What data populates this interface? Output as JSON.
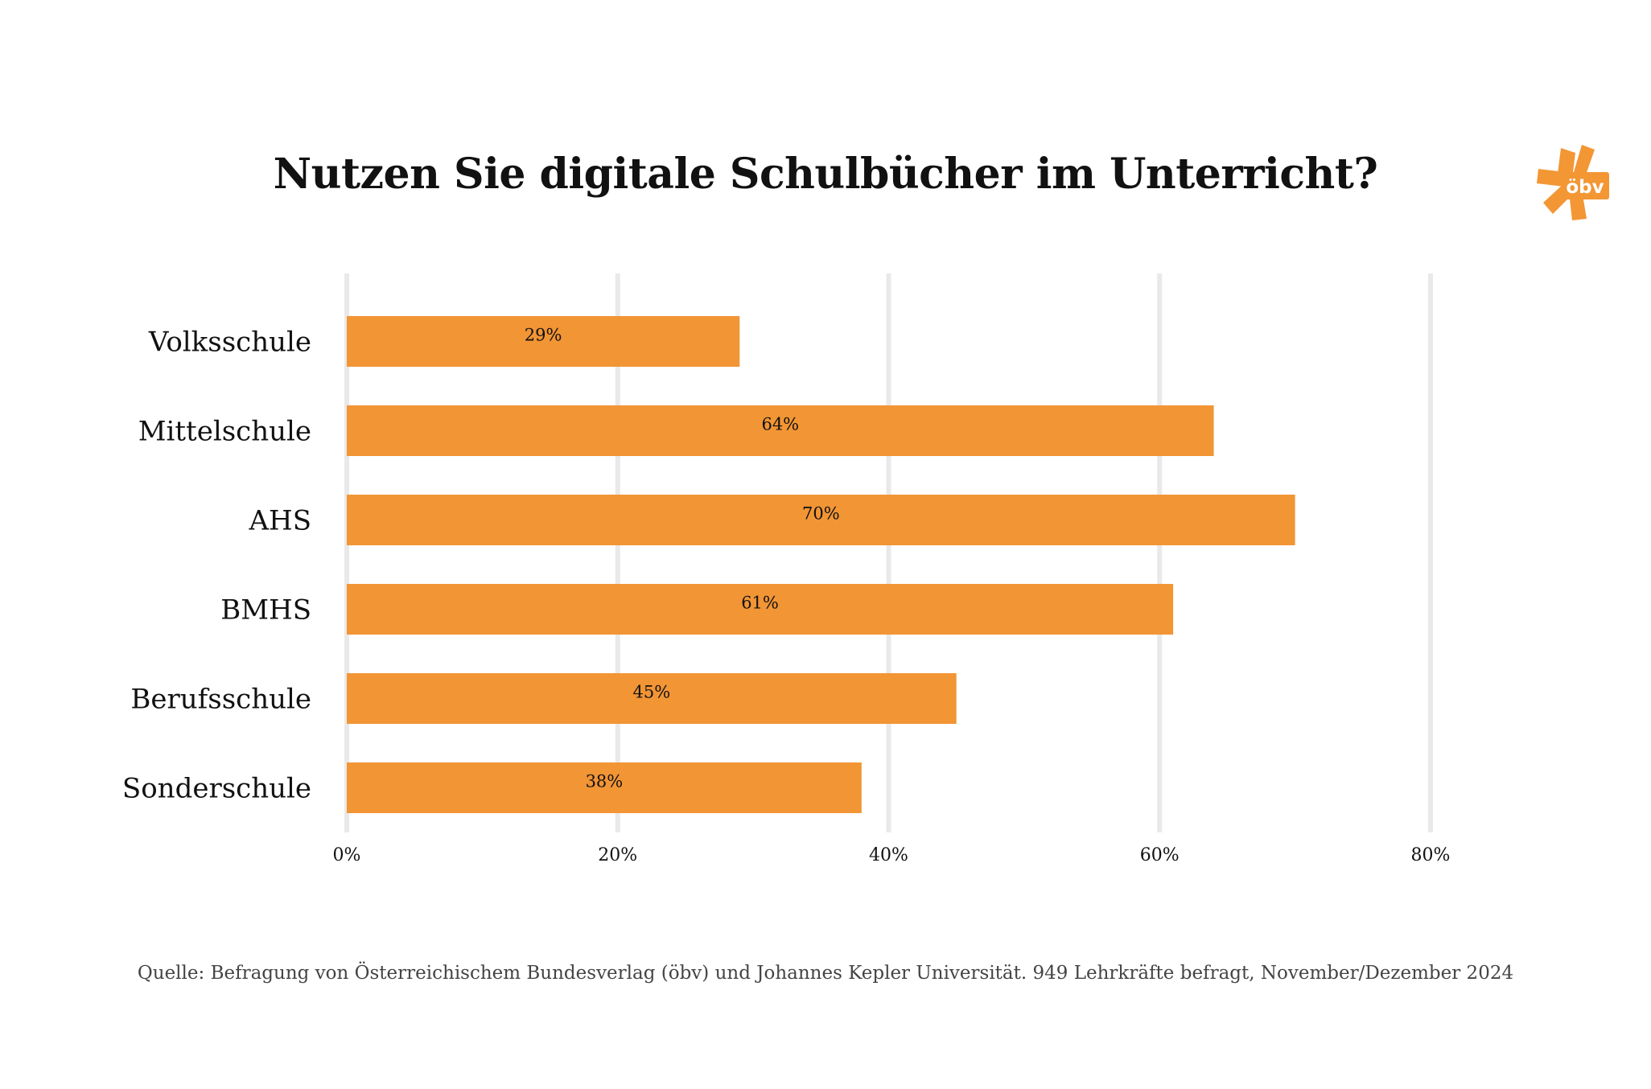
{
  "title": "Nutzen Sie digitale Schulbücher im Unterricht?",
  "logo": {
    "text": "öbv",
    "color": "#f39634",
    "icon": "oebv-asterisk-logo"
  },
  "source": "Quelle: Befragung von Österreichischem Bundesverlag (öbv) und Johannes Kepler Universität. 949 Lehrkräfte befragt, November/Dezember 2024",
  "colors": {
    "bar": "#f29535",
    "grid": "#e9e9e9",
    "text": "#111111"
  },
  "chart_data": {
    "type": "bar",
    "orientation": "horizontal",
    "categories": [
      "Volksschule",
      "Mittelschule",
      "AHS",
      "BMHS",
      "Berufsschule",
      "Sonderschule"
    ],
    "values": [
      29,
      64,
      70,
      61,
      45,
      38
    ],
    "value_labels": [
      "29%",
      "64%",
      "70%",
      "61%",
      "45%",
      "38%"
    ],
    "xlim": [
      0,
      80
    ],
    "xticks": [
      0,
      20,
      40,
      60,
      80
    ],
    "xtick_labels": [
      "0%",
      "20%",
      "40%",
      "60%",
      "80%"
    ],
    "grid": true,
    "legend": "none"
  }
}
